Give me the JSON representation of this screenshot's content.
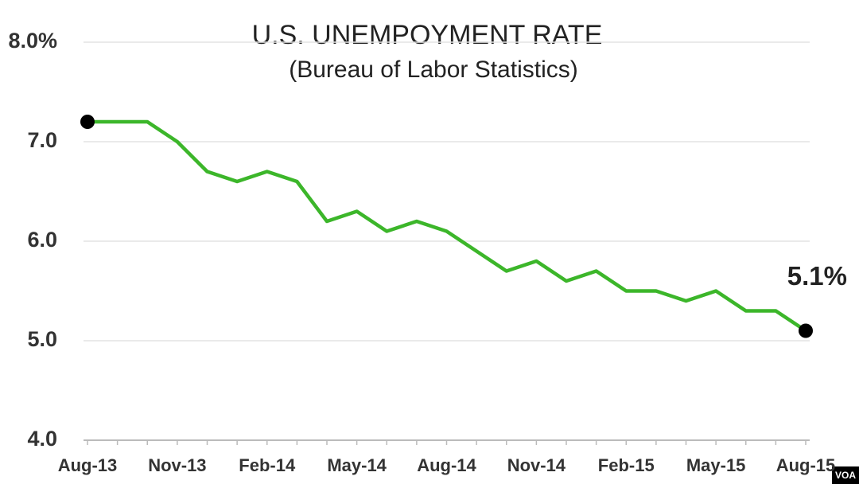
{
  "chart_data": {
    "type": "line",
    "title": "U.S. UNEMPOYMENT RATE",
    "subtitle": "(Bureau of Labor Statistics)",
    "categories": [
      "Aug-13",
      null,
      null,
      "Nov-13",
      null,
      null,
      "Feb-14",
      null,
      null,
      "May-14",
      null,
      null,
      "Aug-14",
      null,
      null,
      "Nov-14",
      null,
      null,
      "Feb-15",
      null,
      null,
      "May-15",
      null,
      null,
      "Aug-15"
    ],
    "values": [
      7.2,
      7.2,
      7.2,
      7.0,
      6.7,
      6.6,
      6.7,
      6.6,
      6.2,
      6.3,
      6.1,
      6.2,
      6.1,
      5.9,
      5.7,
      5.8,
      5.6,
      5.7,
      5.5,
      5.5,
      5.4,
      5.5,
      5.3,
      5.3,
      5.1
    ],
    "value_labels": [
      null,
      null,
      null,
      null,
      null,
      null,
      null,
      null,
      null,
      null,
      null,
      null,
      null,
      null,
      null,
      null,
      null,
      null,
      null,
      null,
      null,
      null,
      null,
      null,
      "5.1%"
    ],
    "color": "#3cb62a",
    "end_markers": true,
    "ylim": [
      4,
      8
    ],
    "yticks": [
      {
        "value": 4,
        "label": "4.0"
      },
      {
        "value": 5,
        "label": "5.0"
      },
      {
        "value": 6,
        "label": "6.0"
      },
      {
        "value": 7,
        "label": "7.0"
      },
      {
        "value": 8,
        "label": "8.0%"
      }
    ],
    "grid": true,
    "watermark": "VOA"
  }
}
